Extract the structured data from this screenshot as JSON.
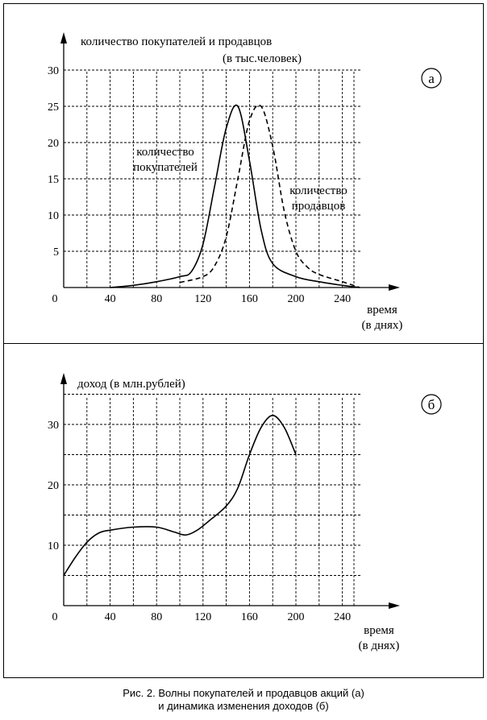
{
  "chart_data": [
    {
      "type": "line",
      "panel_mark": "а",
      "ylabel": "количество покупателей и продавцов",
      "ylabel_unit": "(в тыс.человек)",
      "xlabel": "время",
      "xlabel_unit": "(в днях)",
      "origin_label": "0",
      "x_ticks": [
        "40",
        "80",
        "120",
        "160",
        "200",
        "240"
      ],
      "y_ticks": [
        "5",
        "10",
        "15",
        "20",
        "25",
        "30"
      ],
      "xlim": [
        0,
        260
      ],
      "ylim": [
        0,
        30
      ],
      "grid": true,
      "series": [
        {
          "name": "количество покупателей",
          "name_lines": [
            "количество",
            "покупателей"
          ],
          "style": "solid",
          "x": [
            40,
            60,
            80,
            100,
            110,
            120,
            130,
            140,
            150,
            160,
            170,
            180,
            200,
            220,
            240,
            255
          ],
          "y": [
            0,
            0.3,
            0.8,
            1.5,
            2.2,
            6,
            14,
            22,
            25,
            17.5,
            8,
            3.3,
            1.5,
            0.8,
            0.3,
            0
          ]
        },
        {
          "name": "количество продавцов",
          "name_lines": [
            "количество",
            "продавцов"
          ],
          "style": "dashed",
          "x": [
            100,
            120,
            130,
            140,
            150,
            160,
            170,
            180,
            190,
            200,
            210,
            220,
            240,
            255
          ],
          "y": [
            0.7,
            1.5,
            3,
            7,
            15,
            23,
            25,
            19.5,
            10.5,
            5,
            2.8,
            1.8,
            0.8,
            0
          ]
        }
      ]
    },
    {
      "type": "line",
      "panel_mark": "б",
      "ylabel": "доход (в млн.рублей)",
      "xlabel": "время",
      "xlabel_unit": "(в днях)",
      "origin_label": "0",
      "x_ticks": [
        "40",
        "80",
        "120",
        "160",
        "200",
        "240"
      ],
      "y_ticks": [
        "10",
        "20",
        "30"
      ],
      "xlim": [
        0,
        260
      ],
      "ylim": [
        0,
        36
      ],
      "grid": true,
      "series": [
        {
          "style": "solid",
          "x": [
            0,
            10,
            20,
            30,
            40,
            60,
            80,
            95,
            105,
            115,
            125,
            140,
            150,
            160,
            170,
            180,
            190,
            200
          ],
          "y": [
            5,
            8,
            10.5,
            12,
            12.5,
            13,
            13,
            12.2,
            11.7,
            12.5,
            14,
            16.5,
            19.5,
            25,
            29.5,
            31.5,
            29.5,
            25
          ]
        }
      ]
    }
  ],
  "caption": {
    "line1": "Рис. 2.   Волны покупателей и продавцов акций (а)",
    "line2": "и динамика изменения доходов (б)"
  }
}
